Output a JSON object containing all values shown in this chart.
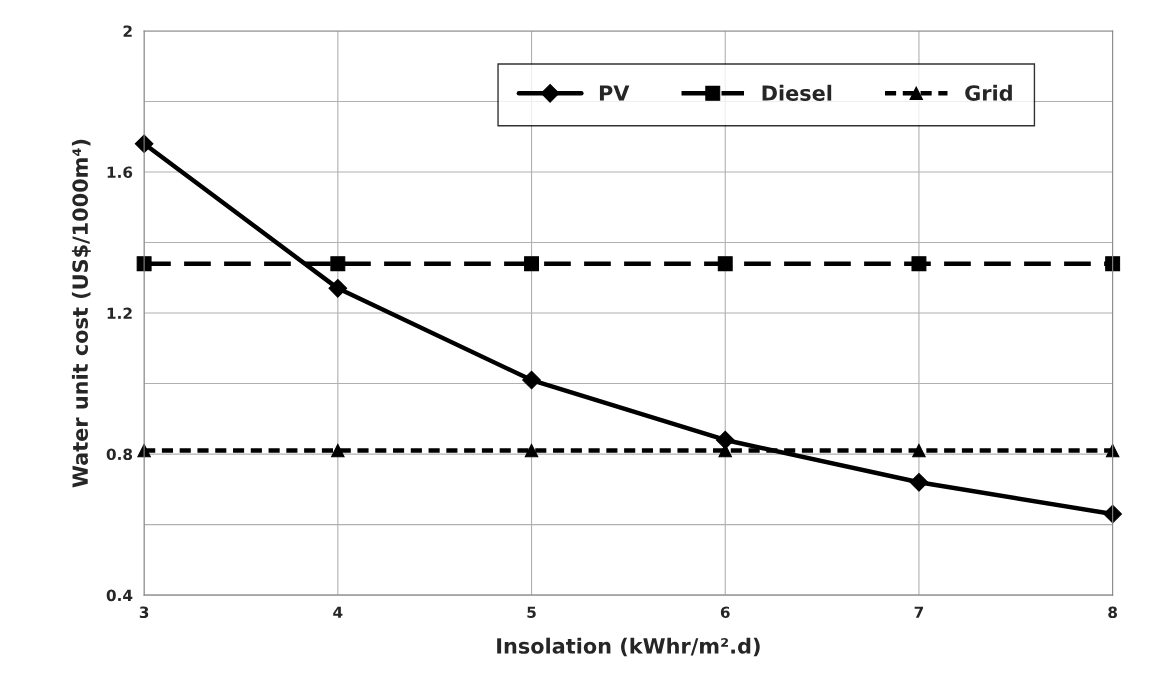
{
  "chart_data": {
    "type": "line",
    "xlabel": "Insolation (kWhr/m².d)",
    "ylabel": "Water unit cost (US$/1000m⁴)",
    "x": [
      3,
      4,
      5,
      6,
      7,
      8
    ],
    "series": [
      {
        "name": "PV",
        "color": "#000000",
        "marker": "diamond",
        "line_style": "solid",
        "values": [
          1.68,
          1.27,
          1.01,
          0.84,
          0.72,
          0.63
        ]
      },
      {
        "name": "Diesel",
        "color": "#000000",
        "marker": "square",
        "line_style": "dashed",
        "values": [
          1.34,
          1.34,
          1.34,
          1.34,
          1.34,
          1.34
        ]
      },
      {
        "name": "Grid",
        "color": "#000000",
        "marker": "triangle",
        "line_style": "dotted",
        "values": [
          0.81,
          0.81,
          0.81,
          0.81,
          0.81,
          0.81
        ]
      }
    ],
    "xlim": [
      3,
      8
    ],
    "xticks": [
      3,
      4,
      5,
      6,
      7,
      8
    ],
    "ylim": [
      0.4,
      2
    ],
    "yticks": [
      0.4,
      {
        "value": 0.6,
        "label": null
      },
      0.8,
      {
        "value": 1.0,
        "label": null
      },
      1.2,
      {
        "value": 1.4,
        "label": null
      },
      1.6,
      {
        "value": 1.8,
        "label": null
      },
      2
    ],
    "grid": true,
    "legend": "top right"
  }
}
